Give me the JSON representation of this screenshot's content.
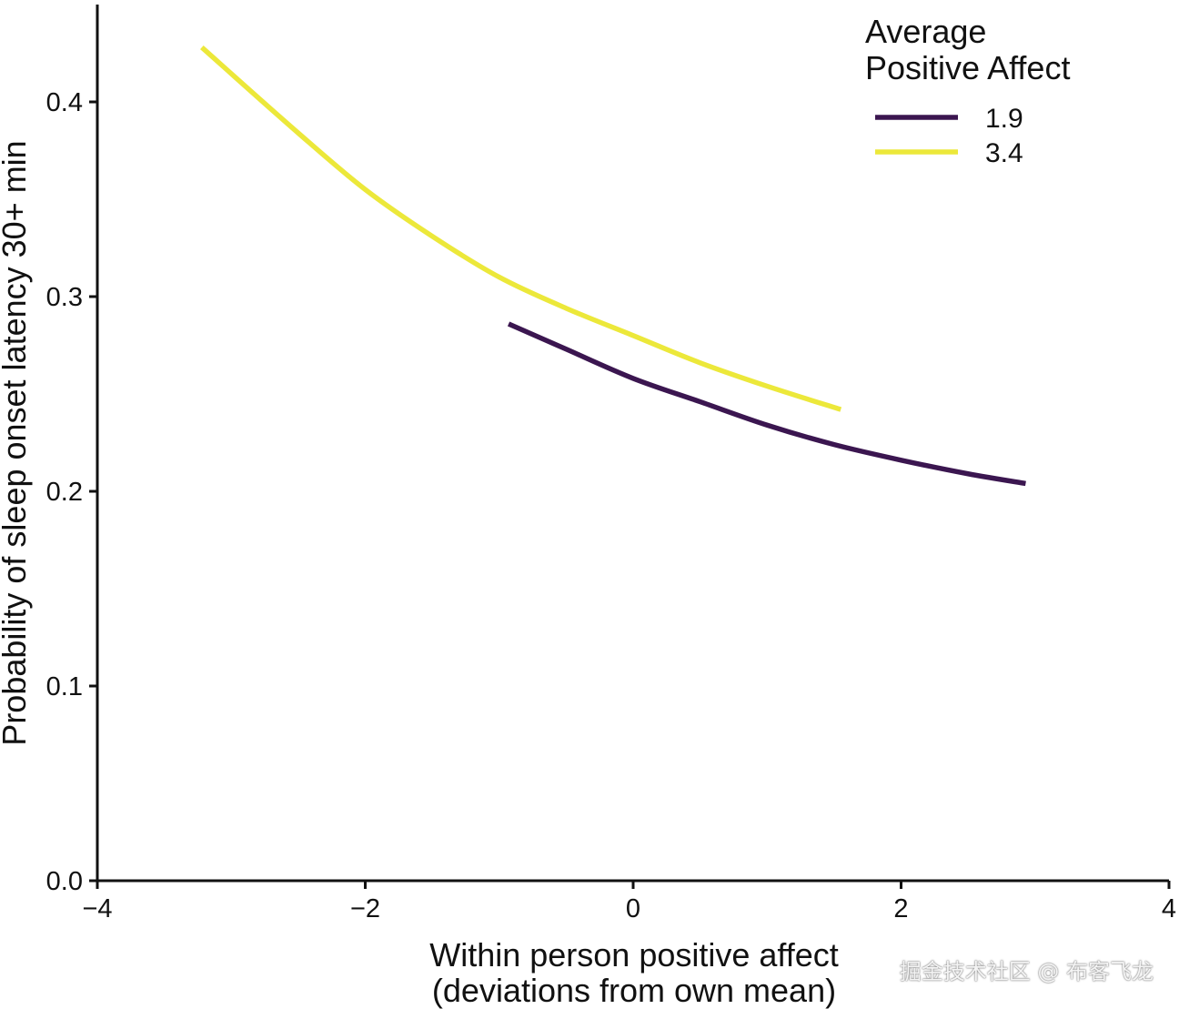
{
  "chart_data": {
    "type": "line",
    "title": "",
    "xlabel_line1": "Within person positive affect",
    "xlabel_line2": "(deviations from own mean)",
    "ylabel": "Probability of sleep onset latency 30+ min",
    "xlim": [
      -4,
      4
    ],
    "ylim": [
      0,
      0.45
    ],
    "xticks": [
      -4,
      -2,
      0,
      2,
      4
    ],
    "xtick_labels": [
      "−4",
      "−2",
      "0",
      "2",
      "4"
    ],
    "yticks": [
      0.0,
      0.1,
      0.2,
      0.3,
      0.4
    ],
    "ytick_labels": [
      "0.0",
      "0.1",
      "0.2",
      "0.3",
      "0.4"
    ],
    "grid": false,
    "legend": {
      "title_line1": "Average",
      "title_line2": "Positive Affect",
      "position": "top-right"
    },
    "series": [
      {
        "name": "1.9",
        "color": "#3b1650",
        "x": [
          -0.93,
          -0.5,
          0.0,
          0.5,
          1.0,
          1.5,
          2.0,
          2.5,
          2.93
        ],
        "y": [
          0.286,
          0.273,
          0.258,
          0.246,
          0.234,
          0.224,
          0.216,
          0.209,
          0.204
        ]
      },
      {
        "name": "3.4",
        "color": "#ece83a",
        "x": [
          -3.22,
          -2.5,
          -2.0,
          -1.5,
          -1.0,
          -0.5,
          0.0,
          0.5,
          1.0,
          1.55
        ],
        "y": [
          0.428,
          0.384,
          0.355,
          0.331,
          0.31,
          0.294,
          0.28,
          0.266,
          0.254,
          0.242
        ]
      }
    ]
  },
  "watermark": "掘金技术社区 @ 布客飞龙"
}
